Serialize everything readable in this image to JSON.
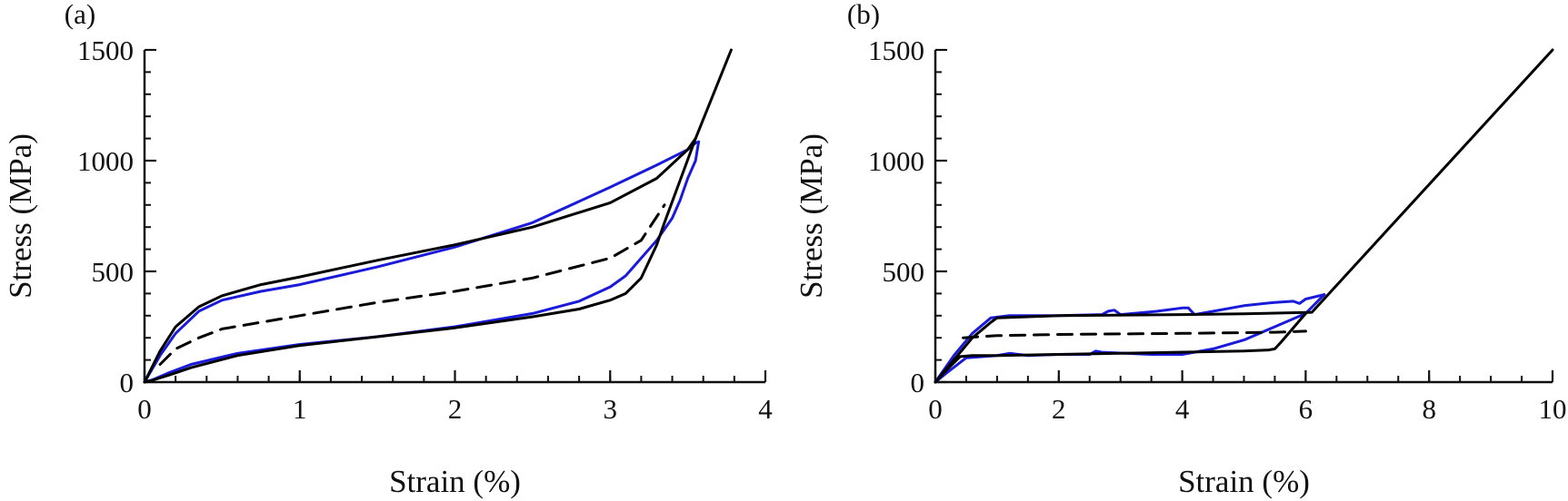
{
  "colors": {
    "experiment": "#1a1adb",
    "model": "#000000",
    "axis": "#111111"
  },
  "chart_data": [
    {
      "type": "line",
      "panel_label": "(a)",
      "xlabel": "Strain (%)",
      "ylabel": "Stress (MPa)",
      "xlim": [
        0,
        4
      ],
      "ylim": [
        0,
        1500
      ],
      "xticks": [
        0,
        1,
        2,
        3,
        4
      ],
      "xtick_labels": [
        "0",
        "1",
        "2",
        "3",
        "4"
      ],
      "yticks": [
        0,
        500,
        1000,
        1500
      ],
      "ytick_labels": [
        "0",
        "500",
        "1000",
        "1500"
      ],
      "x_minor_step": 0.2,
      "y_minor_step": 100,
      "grid": false,
      "legend": "none",
      "series": [
        {
          "style": "solid",
          "color": "#1a1adb",
          "x": [
            0,
            0.1,
            0.2,
            0.35,
            0.5,
            0.75,
            1.0,
            1.5,
            2.0,
            2.5,
            3.0,
            3.3,
            3.5,
            3.55,
            3.57
          ],
          "y": [
            0,
            120,
            220,
            320,
            370,
            410,
            440,
            520,
            610,
            720,
            880,
            980,
            1050,
            1080,
            1085
          ]
        },
        {
          "style": "solid",
          "color": "#1a1adb",
          "x": [
            3.57,
            3.55,
            3.5,
            3.45,
            3.4,
            3.3,
            3.2,
            3.1,
            3.0,
            2.8,
            2.5,
            2.0,
            1.5,
            1.0,
            0.6,
            0.3,
            0.15,
            0.05,
            0
          ],
          "y": [
            1085,
            1000,
            920,
            820,
            740,
            640,
            560,
            480,
            430,
            365,
            310,
            250,
            205,
            170,
            130,
            80,
            40,
            10,
            0
          ]
        },
        {
          "style": "solid",
          "color": "#000000",
          "x": [
            0,
            0.1,
            0.2,
            0.35,
            0.5,
            0.75,
            1.0,
            1.5,
            2.0,
            2.5,
            3.0,
            3.3,
            3.5,
            3.55,
            3.78
          ],
          "y": [
            0,
            140,
            250,
            340,
            390,
            440,
            475,
            550,
            620,
            700,
            810,
            920,
            1050,
            1100,
            1500
          ]
        },
        {
          "style": "solid",
          "color": "#000000",
          "x": [
            3.55,
            3.45,
            3.35,
            3.3,
            3.2,
            3.1,
            3.0,
            2.8,
            2.5,
            2.0,
            1.5,
            1.0,
            0.6,
            0.3,
            0.15,
            0.05,
            0
          ],
          "y": [
            1100,
            910,
            720,
            620,
            470,
            400,
            370,
            330,
            295,
            245,
            205,
            165,
            120,
            65,
            30,
            8,
            0
          ]
        },
        {
          "style": "dashed",
          "color": "#000000",
          "x": [
            0.1,
            0.2,
            0.35,
            0.5,
            1.0,
            1.5,
            2.0,
            2.5,
            3.0,
            3.2,
            3.35
          ],
          "y": [
            80,
            150,
            200,
            240,
            300,
            360,
            410,
            470,
            560,
            640,
            800
          ]
        }
      ]
    },
    {
      "type": "line",
      "panel_label": "(b)",
      "xlabel": "Strain (%)",
      "ylabel": "Stress (MPa)",
      "xlim": [
        0,
        10
      ],
      "ylim": [
        0,
        1500
      ],
      "xticks": [
        0,
        2,
        4,
        6,
        8,
        10
      ],
      "xtick_labels": [
        "0",
        "2",
        "4",
        "6",
        "8",
        "10"
      ],
      "yticks": [
        0,
        500,
        1000,
        1500
      ],
      "ytick_labels": [
        "0",
        "500",
        "1000",
        "1500"
      ],
      "x_minor_step": 0.5,
      "y_minor_step": 100,
      "grid": false,
      "legend": "none",
      "series": [
        {
          "style": "solid",
          "color": "#1a1adb",
          "x": [
            0,
            0.3,
            0.6,
            0.9,
            1.2,
            2.0,
            2.7,
            2.8,
            2.9,
            3.0,
            3.6,
            4.0,
            4.1,
            4.2,
            5.0,
            5.5,
            5.8,
            5.9,
            6.0,
            6.3
          ],
          "y": [
            0,
            120,
            220,
            290,
            300,
            300,
            305,
            320,
            325,
            305,
            320,
            335,
            335,
            305,
            345,
            360,
            365,
            355,
            375,
            395
          ]
        },
        {
          "style": "solid",
          "color": "#1a1adb",
          "x": [
            6.3,
            6.0,
            5.5,
            5.0,
            4.5,
            4.0,
            3.5,
            2.7,
            2.6,
            2.5,
            2.0,
            1.5,
            1.2,
            1.0,
            0.5,
            0.2,
            0
          ],
          "y": [
            395,
            310,
            250,
            190,
            150,
            125,
            125,
            135,
            140,
            125,
            125,
            120,
            130,
            120,
            110,
            45,
            0
          ]
        },
        {
          "style": "solid",
          "color": "#000000",
          "x": [
            0,
            0.6,
            0.9,
            1.0,
            2.0,
            4.0,
            5.0,
            6.1,
            10.0
          ],
          "y": [
            0,
            200,
            270,
            290,
            300,
            305,
            308,
            315,
            1500
          ]
        },
        {
          "style": "solid",
          "color": "#000000",
          "x": [
            6.0,
            5.6,
            5.5,
            5.4,
            5.0,
            3.0,
            1.0,
            0.6,
            0.4,
            0.2,
            0
          ],
          "y": [
            310,
            180,
            150,
            145,
            140,
            130,
            120,
            120,
            115,
            60,
            0
          ]
        },
        {
          "style": "dashed",
          "color": "#000000",
          "x": [
            0.45,
            0.7,
            1.0,
            2.0,
            4.0,
            5.5,
            6.0
          ],
          "y": [
            200,
            205,
            210,
            215,
            220,
            225,
            230
          ]
        }
      ]
    }
  ]
}
